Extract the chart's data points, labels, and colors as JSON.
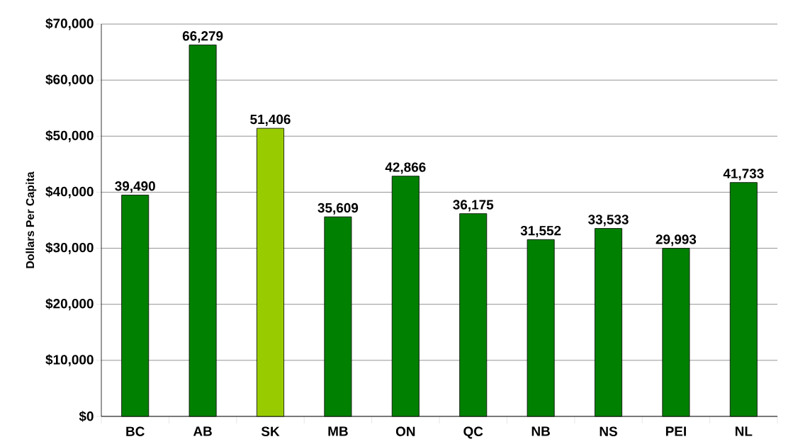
{
  "chart_data": {
    "type": "bar",
    "ylabel": "Dollars Per Capita",
    "categories": [
      "BC",
      "AB",
      "SK",
      "MB",
      "ON",
      "QC",
      "NB",
      "NS",
      "PEI",
      "NL"
    ],
    "values": [
      39490,
      66279,
      51406,
      35609,
      42866,
      36175,
      31552,
      33533,
      29993,
      41733
    ],
    "colors": [
      "#008000",
      "#008000",
      "#99cc00",
      "#008000",
      "#008000",
      "#008000",
      "#008000",
      "#008000",
      "#008000",
      "#008000"
    ],
    "value_labels": [
      "39,490",
      "66,279",
      "51,406",
      "35,609",
      "42,866",
      "36,175",
      "31,552",
      "33,533",
      "29,993",
      "41,733"
    ],
    "ylim": [
      0,
      70000
    ],
    "yticks": [
      {
        "value": 0,
        "label": "$0"
      },
      {
        "value": 10000,
        "label": "$10,000"
      },
      {
        "value": 20000,
        "label": "$20,000"
      },
      {
        "value": 30000,
        "label": "$30,000"
      },
      {
        "value": 40000,
        "label": "$40,000"
      },
      {
        "value": 50000,
        "label": "$50,000"
      },
      {
        "value": 60000,
        "label": "$60,000"
      },
      {
        "value": 70000,
        "label": "$70,000"
      }
    ],
    "grid": "y"
  }
}
